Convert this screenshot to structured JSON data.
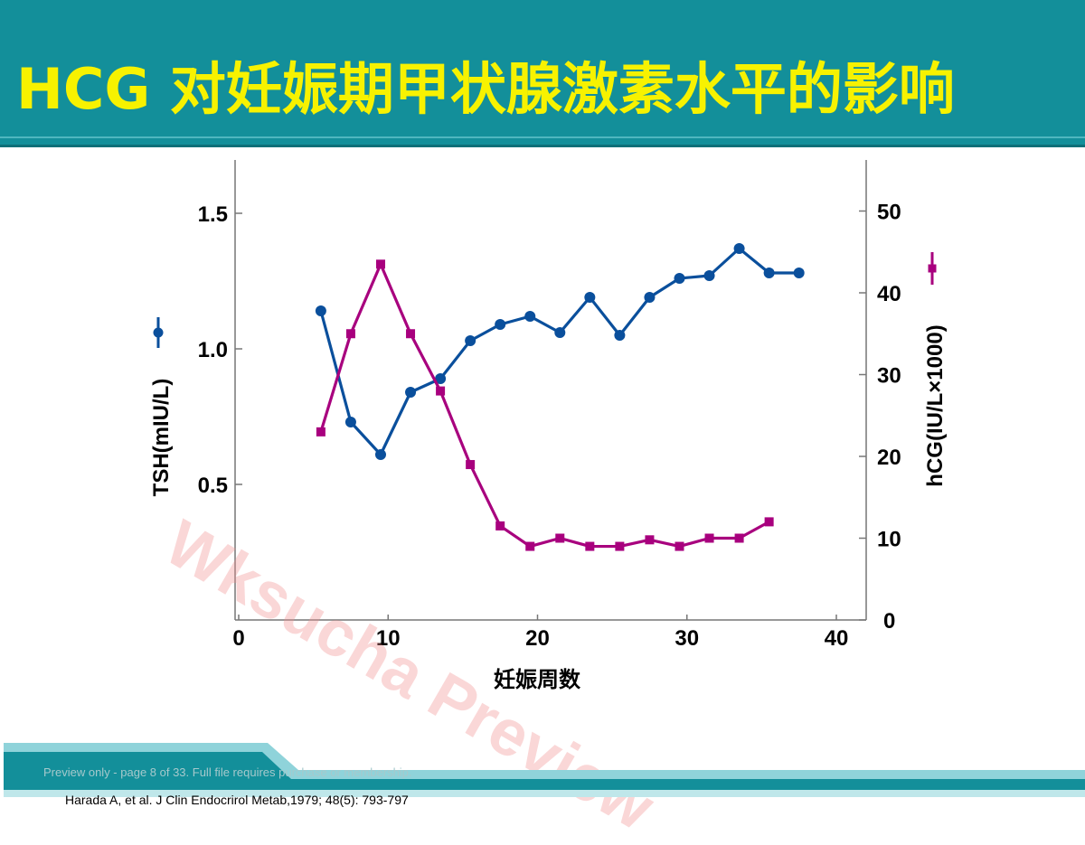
{
  "slide": {
    "title": "HCG 对妊娠期甲状腺激素水平的影响",
    "watermark": "Wksucha Preview",
    "preview_note": "Preview only - page 8 of 33. Full file requires purchase or membership.",
    "citation": "Harada A, et al.  J Clin Endocrirol Metab,1979; 48(5): 793-797"
  },
  "colors": {
    "header_bg": "#138f9a",
    "title": "#f7f200",
    "tsh_series": "#0a4f9c",
    "hcg_series": "#a8007e"
  },
  "chart_data": {
    "type": "line",
    "xlabel": "妊娠周数",
    "ylabel_left": "TSH(mIU/L)",
    "ylabel_right": "hCG(IU/L×1000)",
    "xlim": [
      0,
      42
    ],
    "x_ticks": [
      "0",
      "10",
      "20",
      "30",
      "40"
    ],
    "ylim_left": [
      0,
      1.67
    ],
    "y_left_ticks": [
      "0.5",
      "1.0",
      "1.5"
    ],
    "ylim_right": [
      0,
      55
    ],
    "y_right_ticks": [
      "0",
      "10",
      "20",
      "30",
      "40",
      "50"
    ],
    "grid": false,
    "series": [
      {
        "name": "TSH",
        "axis": "left",
        "marker": "circle",
        "x": [
          5.5,
          7.5,
          9.5,
          11.5,
          13.5,
          15.5,
          17.5,
          19.5,
          21.5,
          23.5,
          25.5,
          27.5,
          29.5,
          31.5,
          33.5,
          35.5,
          37.5
        ],
        "y": [
          1.14,
          0.73,
          0.61,
          0.84,
          0.89,
          1.03,
          1.09,
          1.12,
          1.06,
          1.19,
          1.05,
          1.19,
          1.26,
          1.27,
          1.37,
          1.28,
          1.28
        ]
      },
      {
        "name": "hCG",
        "axis": "right",
        "marker": "square",
        "x": [
          5.5,
          7.5,
          9.5,
          11.5,
          13.5,
          15.5,
          17.5,
          19.5,
          21.5,
          23.5,
          25.5,
          27.5,
          29.5,
          31.5,
          33.5,
          35.5
        ],
        "y": [
          23,
          35,
          43.5,
          35,
          28,
          19,
          11.5,
          9,
          10,
          9,
          9,
          9.8,
          9,
          10,
          10,
          12
        ]
      }
    ]
  }
}
